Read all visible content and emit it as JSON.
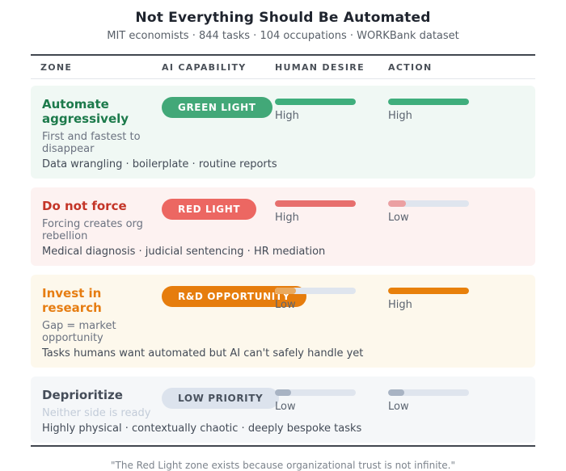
{
  "header": {
    "title": "Not Everything Should Be Automated",
    "subtitle": "MIT economists · 844 tasks · 104 occupations · WORKBank dataset"
  },
  "table": {
    "columns": [
      "ZONE",
      "AI CAPABILITY",
      "HUMAN DESIRE",
      "ACTION"
    ],
    "rows": [
      {
        "zone": "GREEN LIGHT",
        "zone_bg": "#42a878",
        "zone_text": "#ffffff",
        "row_bg": "#f0f8f4",
        "ai": {
          "level": "High",
          "pct": 100,
          "color": "#3fae7c"
        },
        "human": {
          "level": "High",
          "pct": 100,
          "color": "#3fae7c"
        },
        "action": {
          "title": "Automate aggressively",
          "color": "#1c7a4b",
          "subtitle": "First and fastest to disappear",
          "subtitle_color": "#6b7280"
        },
        "examples": "Data wrangling · boilerplate · routine reports"
      },
      {
        "zone": "RED LIGHT",
        "zone_bg": "#ec6762",
        "zone_text": "#ffffff",
        "row_bg": "#fdf2f1",
        "ai": {
          "level": "High",
          "pct": 100,
          "color": "#e76f6d"
        },
        "human": {
          "level": "Low",
          "pct": 22,
          "color": "#eba0a2"
        },
        "action": {
          "title": "Do not force",
          "color": "#c43528",
          "subtitle": "Forcing creates org rebellion",
          "subtitle_color": "#6b7280"
        },
        "examples": "Medical diagnosis · judicial sentencing · HR mediation"
      },
      {
        "zone": "R&D OPPORTUNITY",
        "zone_bg": "#e67d0d",
        "zone_text": "#ffffff",
        "row_bg": "#fdf8ec",
        "ai": {
          "level": "Low",
          "pct": 26,
          "color": "#e9a95e"
        },
        "human": {
          "level": "High",
          "pct": 100,
          "color": "#e8800a"
        },
        "action": {
          "title": "Invest in research",
          "color": "#e67d12",
          "subtitle": "Gap = market opportunity",
          "subtitle_color": "#6b7280"
        },
        "examples": "Tasks humans want automated but AI can't safely handle yet"
      },
      {
        "zone": "LOW PRIORITY",
        "zone_bg": "#dce3ed",
        "zone_text": "#49525e",
        "row_bg": "#f5f7f9",
        "ai": {
          "level": "Low",
          "pct": 20,
          "color": "#a8b3c3"
        },
        "human": {
          "level": "Low",
          "pct": 20,
          "color": "#a8b3c3"
        },
        "action": {
          "title": "Deprioritize",
          "color": "#454d59",
          "subtitle": "Neither side is ready",
          "subtitle_color": "#c3ccd9"
        },
        "examples": "Highly physical · contextually chaotic · deeply bespoke tasks"
      }
    ]
  },
  "footer": {
    "quote": "\"The Red Light zone exists because organizational trust is not infinite.\""
  },
  "chart_data": {
    "type": "table",
    "title": "Not Everything Should Be Automated",
    "subtitle": "MIT economists · 844 tasks · 104 occupations · WORKBank dataset",
    "columns": [
      "ZONE",
      "AI CAPABILITY",
      "HUMAN DESIRE",
      "ACTION"
    ],
    "categories": [
      "GREEN LIGHT",
      "RED LIGHT",
      "R&D OPPORTUNITY",
      "LOW PRIORITY"
    ],
    "series": [
      {
        "name": "AI CAPABILITY",
        "values": [
          "High",
          "High",
          "Low",
          "Low"
        ],
        "pct": [
          100,
          100,
          26,
          20
        ]
      },
      {
        "name": "HUMAN DESIRE",
        "values": [
          "High",
          "Low",
          "High",
          "Low"
        ],
        "pct": [
          100,
          22,
          100,
          20
        ]
      }
    ],
    "actions": [
      "Automate aggressively",
      "Do not force",
      "Invest in research",
      "Deprioritize"
    ],
    "action_notes": [
      "First and fastest to disappear",
      "Forcing creates org rebellion",
      "Gap = market opportunity",
      "Neither side is ready"
    ],
    "examples": [
      "Data wrangling · boilerplate · routine reports",
      "Medical diagnosis · judicial sentencing · HR mediation",
      "Tasks humans want automated but AI can't safely handle yet",
      "Highly physical · contextually chaotic · deeply bespoke tasks"
    ],
    "annotation": "\"The Red Light zone exists because organizational trust is not infinite.\""
  }
}
